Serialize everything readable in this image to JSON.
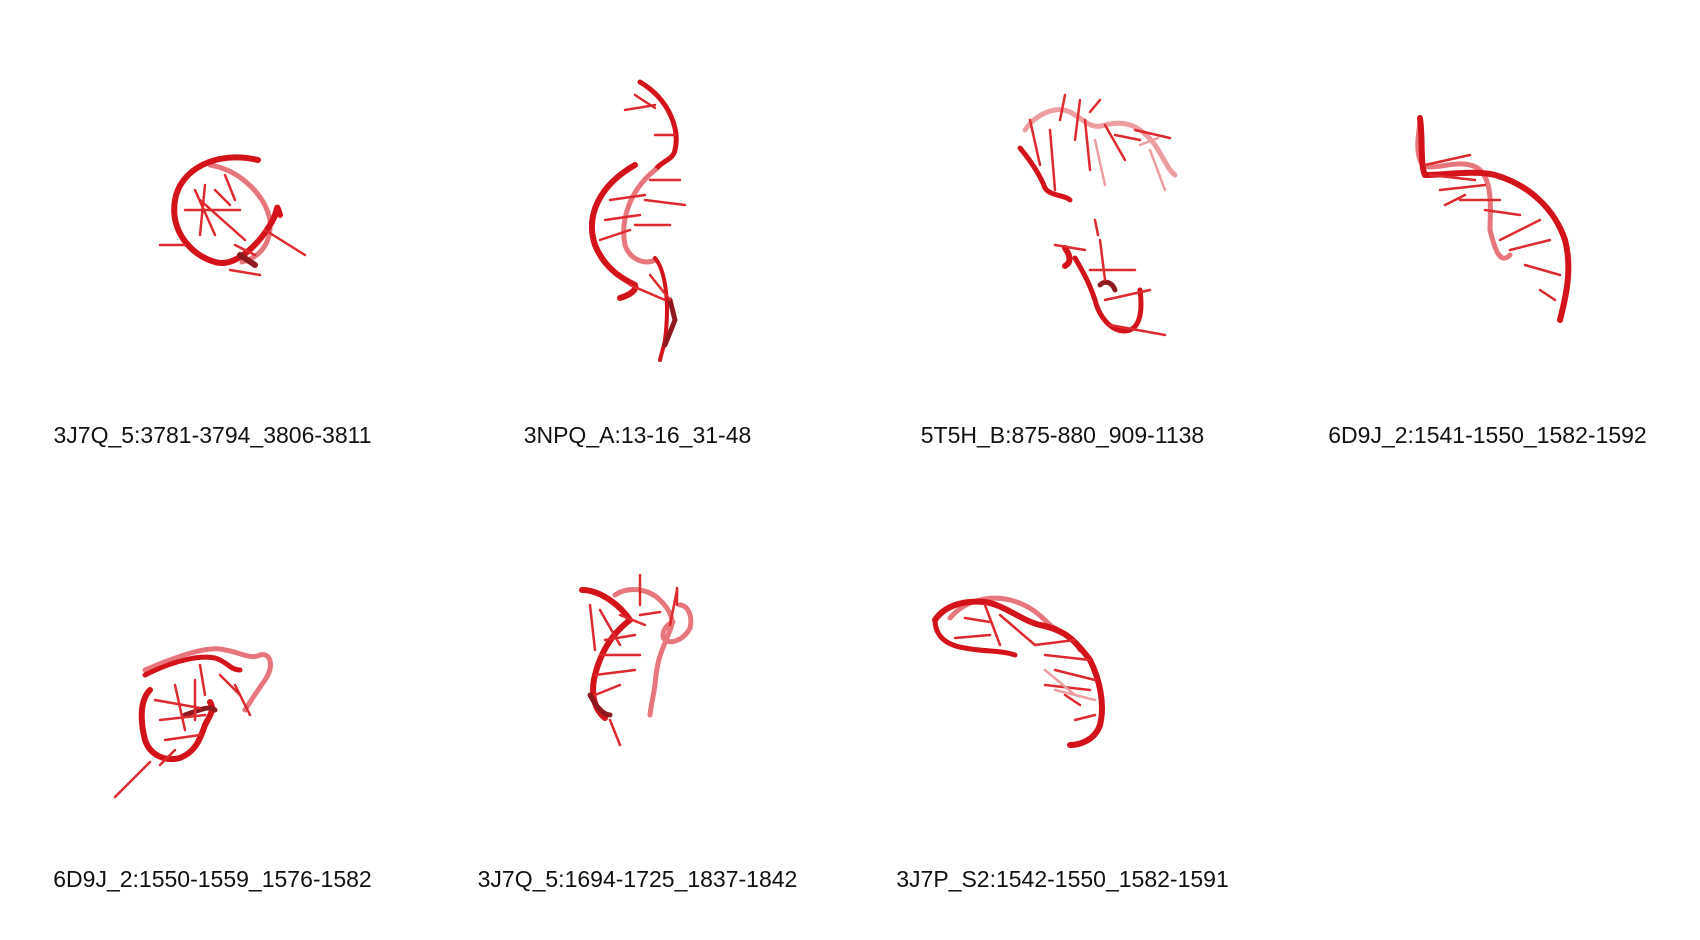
{
  "colors": {
    "backbone": "#d41219",
    "backbone_light": "#e8767d",
    "backbone_dark": "#8e1a1f",
    "base": "#de2a2f",
    "base_light": "#ee9ea1"
  },
  "structures": [
    {
      "label": "3J7Q_5:3781-3794_3806-3811",
      "icon": "rna-3d-structure"
    },
    {
      "label": "3NPQ_A:13-16_31-48",
      "icon": "rna-3d-structure"
    },
    {
      "label": "5T5H_B:875-880_909-1138",
      "icon": "rna-3d-structure"
    },
    {
      "label": "6D9J_2:1541-1550_1582-1592",
      "icon": "rna-3d-structure"
    },
    {
      "label": "6D9J_2:1550-1559_1576-1582",
      "icon": "rna-3d-structure"
    },
    {
      "label": "3J7Q_5:1694-1725_1837-1842",
      "icon": "rna-3d-structure"
    },
    {
      "label": "3J7P_S2:1542-1550_1582-1591",
      "icon": "rna-3d-structure"
    }
  ]
}
